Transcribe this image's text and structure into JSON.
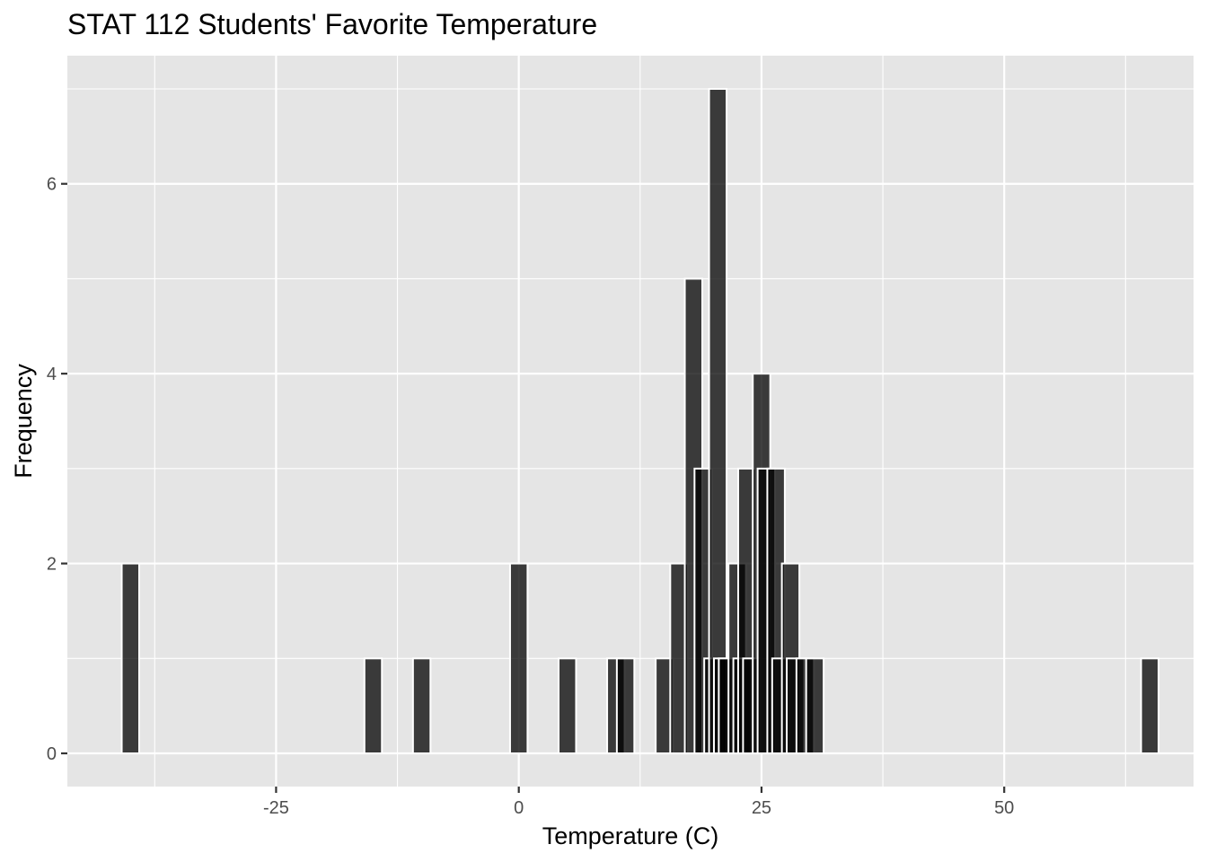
{
  "chart_data": {
    "type": "bar",
    "title": "STAT 112 Students' Favorite Temperature",
    "xlabel": "Temperature (C)",
    "ylabel": "Frequency",
    "xlim": [
      -46.5,
      69.5
    ],
    "ylim": [
      -0.35,
      7.35
    ],
    "x_ticks": [
      -25,
      0,
      25,
      50
    ],
    "y_ticks": [
      0,
      2,
      4,
      6
    ],
    "bar_width": 1.8,
    "grid": true,
    "bars": [
      {
        "x": -40,
        "value": 2
      },
      {
        "x": -15,
        "value": 1
      },
      {
        "x": -10,
        "value": 1
      },
      {
        "x": 0,
        "value": 2
      },
      {
        "x": 5,
        "value": 1
      },
      {
        "x": 10,
        "value": 1
      },
      {
        "x": 11,
        "value": 1
      },
      {
        "x": 15,
        "value": 1
      },
      {
        "x": 16.5,
        "value": 2
      },
      {
        "x": 18,
        "value": 5
      },
      {
        "x": 19,
        "value": 3
      },
      {
        "x": 20,
        "value": 1
      },
      {
        "x": 20.5,
        "value": 7
      },
      {
        "x": 21,
        "value": 1
      },
      {
        "x": 21.5,
        "value": 1
      },
      {
        "x": 22.5,
        "value": 2
      },
      {
        "x": 23,
        "value": 1
      },
      {
        "x": 23.5,
        "value": 3
      },
      {
        "x": 24,
        "value": 1
      },
      {
        "x": 25,
        "value": 4
      },
      {
        "x": 25.5,
        "value": 3
      },
      {
        "x": 26.5,
        "value": 3
      },
      {
        "x": 27,
        "value": 1
      },
      {
        "x": 28,
        "value": 2
      },
      {
        "x": 28.5,
        "value": 1
      },
      {
        "x": 29.5,
        "value": 1
      },
      {
        "x": 30.5,
        "value": 1
      },
      {
        "x": 65,
        "value": 1
      }
    ],
    "colors": {
      "panel": "#e5e5e5",
      "grid": "#ffffff",
      "bar_fill": "#000000",
      "bar_opacity": 0.75,
      "bar_stroke": "#ffffff"
    }
  }
}
